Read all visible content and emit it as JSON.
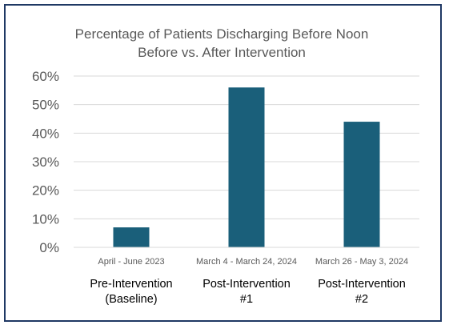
{
  "chart_data": {
    "type": "bar",
    "title": [
      "Percentage of Patients Discharging Before Noon",
      "Before vs. After Intervention"
    ],
    "xlabel": "",
    "ylabel": "",
    "ylim": [
      0,
      60
    ],
    "yticks": [
      "0%",
      "10%",
      "20%",
      "30%",
      "40%",
      "50%",
      "60%"
    ],
    "grid": true,
    "legend": "none",
    "bar_color": "#1a5f7a",
    "border_color": "#1f3864",
    "categories": [
      "April - June 2023",
      "March 4 - March 24, 2024",
      "March 26 - May 3, 2024"
    ],
    "values": [
      7,
      56,
      44
    ],
    "phases": [
      [
        "Pre-Intervention",
        "(Baseline)"
      ],
      [
        "Post-Intervention",
        "#1"
      ],
      [
        "Post-Intervention",
        "#2"
      ]
    ]
  }
}
